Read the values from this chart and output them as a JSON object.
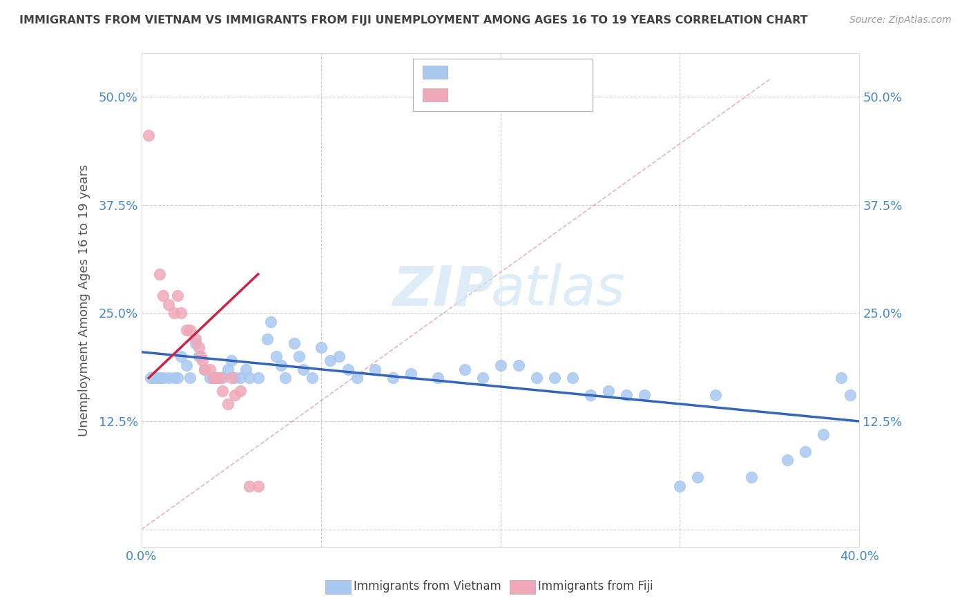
{
  "title": "IMMIGRANTS FROM VIETNAM VS IMMIGRANTS FROM FIJI UNEMPLOYMENT AMONG AGES 16 TO 19 YEARS CORRELATION CHART",
  "source": "Source: ZipAtlas.com",
  "ylabel": "Unemployment Among Ages 16 to 19 years",
  "xlim": [
    0.0,
    0.4
  ],
  "ylim": [
    -0.02,
    0.55
  ],
  "xticks": [
    0.0,
    0.1,
    0.2,
    0.3,
    0.4
  ],
  "xticklabels": [
    "0.0%",
    "",
    "",
    "",
    "40.0%"
  ],
  "yticks": [
    0.0,
    0.125,
    0.25,
    0.375,
    0.5
  ],
  "yticklabels": [
    "",
    "12.5%",
    "25.0%",
    "37.5%",
    "50.0%"
  ],
  "legend_labels": [
    "Immigrants from Vietnam",
    "Immigrants from Fiji"
  ],
  "vietnam_color": "#a8c8f0",
  "fiji_color": "#f0a8b8",
  "vietnam_line_color": "#3366bb",
  "fiji_line_color": "#cc2244",
  "watermark_zip": "ZIP",
  "watermark_atlas": "atlas",
  "background_color": "#ffffff",
  "grid_color": "#cccccc",
  "title_color": "#404040",
  "tick_color": "#4488cc",
  "vietnam_scatter": [
    [
      0.005,
      0.175
    ],
    [
      0.007,
      0.175
    ],
    [
      0.008,
      0.175
    ],
    [
      0.01,
      0.175
    ],
    [
      0.012,
      0.175
    ],
    [
      0.015,
      0.175
    ],
    [
      0.018,
      0.175
    ],
    [
      0.02,
      0.175
    ],
    [
      0.022,
      0.2
    ],
    [
      0.025,
      0.19
    ],
    [
      0.027,
      0.175
    ],
    [
      0.03,
      0.215
    ],
    [
      0.032,
      0.2
    ],
    [
      0.035,
      0.185
    ],
    [
      0.038,
      0.175
    ],
    [
      0.04,
      0.175
    ],
    [
      0.042,
      0.175
    ],
    [
      0.045,
      0.175
    ],
    [
      0.048,
      0.185
    ],
    [
      0.05,
      0.195
    ],
    [
      0.052,
      0.175
    ],
    [
      0.055,
      0.175
    ],
    [
      0.058,
      0.185
    ],
    [
      0.06,
      0.175
    ],
    [
      0.065,
      0.175
    ],
    [
      0.07,
      0.22
    ],
    [
      0.072,
      0.24
    ],
    [
      0.075,
      0.2
    ],
    [
      0.078,
      0.19
    ],
    [
      0.08,
      0.175
    ],
    [
      0.085,
      0.215
    ],
    [
      0.088,
      0.2
    ],
    [
      0.09,
      0.185
    ],
    [
      0.095,
      0.175
    ],
    [
      0.1,
      0.21
    ],
    [
      0.105,
      0.195
    ],
    [
      0.11,
      0.2
    ],
    [
      0.115,
      0.185
    ],
    [
      0.12,
      0.175
    ],
    [
      0.13,
      0.185
    ],
    [
      0.14,
      0.175
    ],
    [
      0.15,
      0.18
    ],
    [
      0.165,
      0.175
    ],
    [
      0.18,
      0.185
    ],
    [
      0.19,
      0.175
    ],
    [
      0.2,
      0.19
    ],
    [
      0.21,
      0.19
    ],
    [
      0.22,
      0.175
    ],
    [
      0.23,
      0.175
    ],
    [
      0.24,
      0.175
    ],
    [
      0.25,
      0.155
    ],
    [
      0.26,
      0.16
    ],
    [
      0.27,
      0.155
    ],
    [
      0.28,
      0.155
    ],
    [
      0.3,
      0.05
    ],
    [
      0.31,
      0.06
    ],
    [
      0.32,
      0.155
    ],
    [
      0.34,
      0.06
    ],
    [
      0.36,
      0.08
    ],
    [
      0.37,
      0.09
    ],
    [
      0.38,
      0.11
    ],
    [
      0.39,
      0.175
    ],
    [
      0.395,
      0.155
    ]
  ],
  "fiji_scatter": [
    [
      0.004,
      0.455
    ],
    [
      0.01,
      0.295
    ],
    [
      0.012,
      0.27
    ],
    [
      0.015,
      0.26
    ],
    [
      0.018,
      0.25
    ],
    [
      0.02,
      0.27
    ],
    [
      0.022,
      0.25
    ],
    [
      0.025,
      0.23
    ],
    [
      0.027,
      0.23
    ],
    [
      0.03,
      0.22
    ],
    [
      0.032,
      0.21
    ],
    [
      0.033,
      0.2
    ],
    [
      0.034,
      0.195
    ],
    [
      0.035,
      0.185
    ],
    [
      0.038,
      0.185
    ],
    [
      0.04,
      0.175
    ],
    [
      0.042,
      0.175
    ],
    [
      0.044,
      0.175
    ],
    [
      0.045,
      0.16
    ],
    [
      0.048,
      0.145
    ],
    [
      0.05,
      0.175
    ],
    [
      0.052,
      0.155
    ],
    [
      0.055,
      0.16
    ],
    [
      0.06,
      0.05
    ],
    [
      0.065,
      0.05
    ]
  ],
  "vietnam_trendline": [
    [
      0.0,
      0.205
    ],
    [
      0.4,
      0.125
    ]
  ],
  "fiji_trendline": [
    [
      0.004,
      0.175
    ],
    [
      0.065,
      0.295
    ]
  ]
}
